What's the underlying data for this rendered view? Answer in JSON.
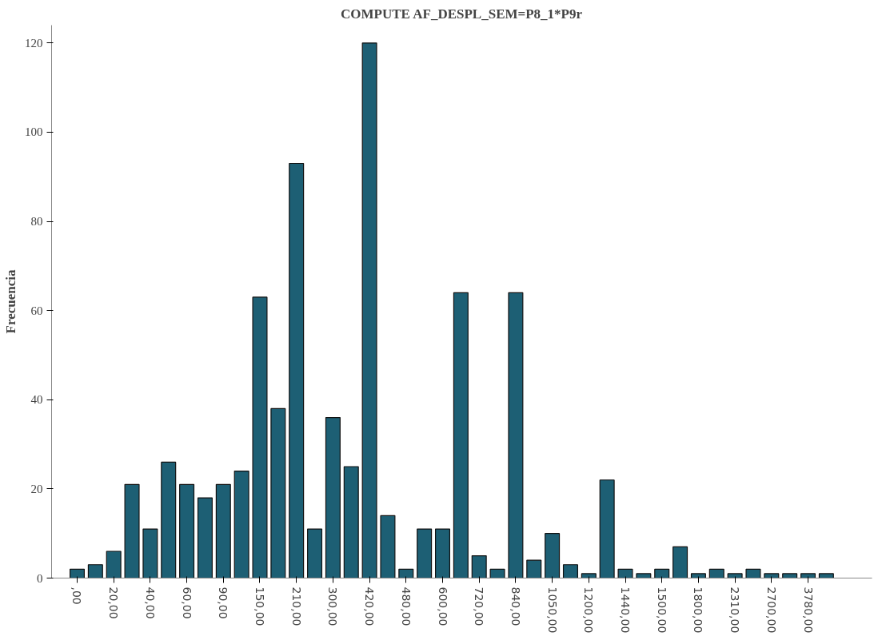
{
  "chart_data": {
    "type": "bar",
    "title": "COMPUTE AF_DESPL_SEM=P8_1*P9r",
    "ylabel": "Frecuencia",
    "categories": [
      ",00",
      null,
      "20,00",
      null,
      "40,00",
      null,
      "60,00",
      null,
      "90,00",
      null,
      "150,00",
      null,
      "210,00",
      null,
      "300,00",
      null,
      "420,00",
      null,
      "480,00",
      null,
      "600,00",
      null,
      "720,00",
      null,
      "840,00",
      null,
      "1050,00",
      null,
      "1200,00",
      null,
      "1440,00",
      null,
      "1500,00",
      null,
      "1800,00",
      null,
      "2310,00",
      null,
      "2700,00",
      null,
      "3780,00",
      null
    ],
    "values": [
      2,
      3,
      6,
      21,
      11,
      26,
      21,
      18,
      21,
      24,
      63,
      38,
      93,
      11,
      36,
      25,
      120,
      14,
      2,
      11,
      11,
      64,
      5,
      2,
      64,
      4,
      10,
      3,
      1,
      22,
      2,
      1,
      2,
      7,
      1,
      2,
      1,
      2,
      1,
      1,
      1,
      1
    ],
    "color": "#1d5f74",
    "ylim": [
      0,
      124
    ],
    "yticks": [
      0,
      20,
      40,
      60,
      80,
      100,
      120
    ],
    "grid": false
  }
}
